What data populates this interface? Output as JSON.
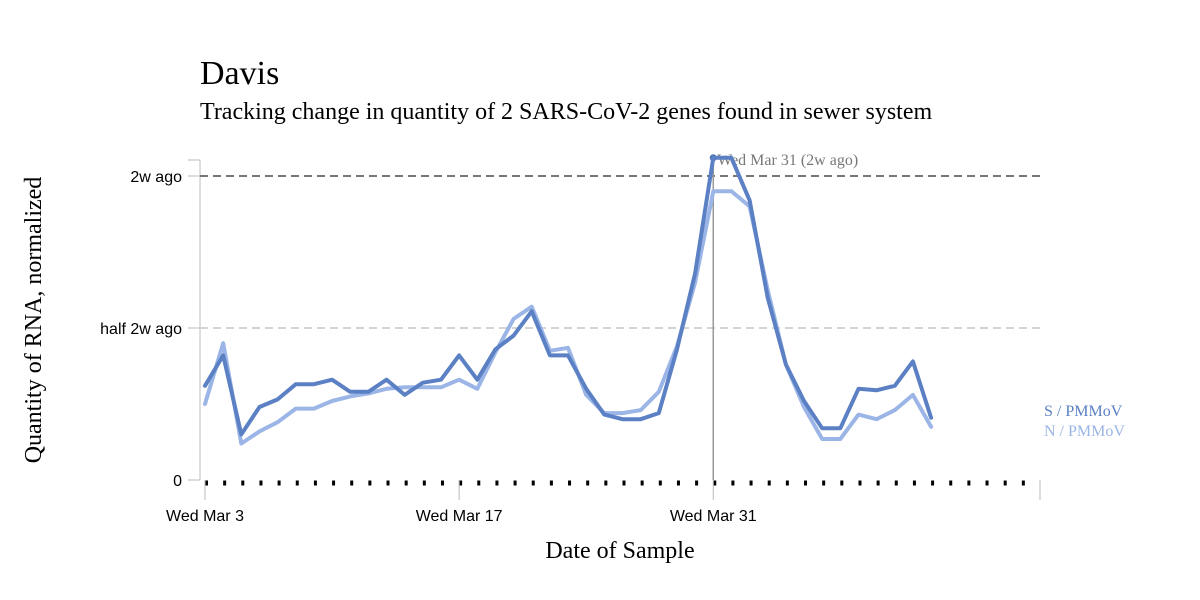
{
  "chart_data": {
    "type": "line",
    "title": "Davis",
    "subtitle": "Tracking change in quantity of 2 SARS-CoV-2 genes found in sewer system",
    "xlabel": "Date of Sample",
    "ylabel": "Quantity of RNA, normalized",
    "x_start": "2021-03-03",
    "x_end": "2021-04-18",
    "x_ticks": [
      {
        "date": "2021-03-03",
        "label": "Wed Mar 3"
      },
      {
        "date": "2021-03-17",
        "label": "Wed Mar 17"
      },
      {
        "date": "2021-03-31",
        "label": "Wed Mar 31"
      }
    ],
    "ylim": [
      0,
      1.05
    ],
    "y_ticks": [
      {
        "value": 0,
        "label": "0"
      },
      {
        "value": 0.5,
        "label": "half 2w ago"
      },
      {
        "value": 1,
        "label": "2w ago"
      }
    ],
    "reference_lines": [
      {
        "value": 1,
        "style": "dashed-dark"
      },
      {
        "value": 0.5,
        "style": "dashed-light"
      }
    ],
    "annotation": {
      "date": "2021-03-31",
      "text": "Wed Mar 31 (2w ago)"
    },
    "series": [
      {
        "name": "N / PMMoV",
        "color": "#9ab5e6",
        "points": [
          [
            "2021-03-03",
            0.25
          ],
          [
            "2021-03-04",
            0.45
          ],
          [
            "2021-03-05",
            0.12
          ],
          [
            "2021-03-06",
            0.16
          ],
          [
            "2021-03-07",
            0.19
          ],
          [
            "2021-03-08",
            0.235
          ],
          [
            "2021-03-09",
            0.235
          ],
          [
            "2021-03-10",
            0.26
          ],
          [
            "2021-03-11",
            0.275
          ],
          [
            "2021-03-12",
            0.285
          ],
          [
            "2021-03-13",
            0.3
          ],
          [
            "2021-03-14",
            0.305
          ],
          [
            "2021-03-15",
            0.305
          ],
          [
            "2021-03-16",
            0.305
          ],
          [
            "2021-03-17",
            0.33
          ],
          [
            "2021-03-18",
            0.3
          ],
          [
            "2021-03-19",
            0.42
          ],
          [
            "2021-03-20",
            0.53
          ],
          [
            "2021-03-21",
            0.57
          ],
          [
            "2021-03-22",
            0.425
          ],
          [
            "2021-03-23",
            0.435
          ],
          [
            "2021-03-24",
            0.28
          ],
          [
            "2021-03-25",
            0.22
          ],
          [
            "2021-03-26",
            0.22
          ],
          [
            "2021-03-27",
            0.23
          ],
          [
            "2021-03-28",
            0.29
          ],
          [
            "2021-03-29",
            0.44
          ],
          [
            "2021-03-30",
            0.65
          ],
          [
            "2021-03-31",
            0.95
          ],
          [
            "2021-04-01",
            0.95
          ],
          [
            "2021-04-02",
            0.9
          ],
          [
            "2021-04-03",
            0.625
          ],
          [
            "2021-04-04",
            0.38
          ],
          [
            "2021-04-05",
            0.24
          ],
          [
            "2021-04-06",
            0.135
          ],
          [
            "2021-04-07",
            0.135
          ],
          [
            "2021-04-08",
            0.215
          ],
          [
            "2021-04-09",
            0.2
          ],
          [
            "2021-04-10",
            0.23
          ],
          [
            "2021-04-11",
            0.28
          ],
          [
            "2021-04-12",
            0.175
          ]
        ]
      },
      {
        "name": "S / PMMoV",
        "color": "#5b80c4",
        "points": [
          [
            "2021-03-03",
            0.31
          ],
          [
            "2021-03-04",
            0.41
          ],
          [
            "2021-03-05",
            0.15
          ],
          [
            "2021-03-06",
            0.24
          ],
          [
            "2021-03-07",
            0.265
          ],
          [
            "2021-03-08",
            0.315
          ],
          [
            "2021-03-09",
            0.315
          ],
          [
            "2021-03-10",
            0.33
          ],
          [
            "2021-03-11",
            0.29
          ],
          [
            "2021-03-12",
            0.29
          ],
          [
            "2021-03-13",
            0.33
          ],
          [
            "2021-03-14",
            0.28
          ],
          [
            "2021-03-15",
            0.32
          ],
          [
            "2021-03-16",
            0.33
          ],
          [
            "2021-03-17",
            0.41
          ],
          [
            "2021-03-18",
            0.33
          ],
          [
            "2021-03-19",
            0.43
          ],
          [
            "2021-03-20",
            0.475
          ],
          [
            "2021-03-21",
            0.555
          ],
          [
            "2021-03-22",
            0.41
          ],
          [
            "2021-03-23",
            0.41
          ],
          [
            "2021-03-24",
            0.3
          ],
          [
            "2021-03-25",
            0.215
          ],
          [
            "2021-03-26",
            0.2
          ],
          [
            "2021-03-27",
            0.2
          ],
          [
            "2021-03-28",
            0.22
          ],
          [
            "2021-03-29",
            0.43
          ],
          [
            "2021-03-30",
            0.68
          ],
          [
            "2021-03-31",
            1.06
          ],
          [
            "2021-04-01",
            1.06
          ],
          [
            "2021-04-02",
            0.92
          ],
          [
            "2021-04-03",
            0.6
          ],
          [
            "2021-04-04",
            0.38
          ],
          [
            "2021-04-05",
            0.26
          ],
          [
            "2021-04-06",
            0.17
          ],
          [
            "2021-04-07",
            0.17
          ],
          [
            "2021-04-08",
            0.3
          ],
          [
            "2021-04-09",
            0.295
          ],
          [
            "2021-04-10",
            0.31
          ],
          [
            "2021-04-11",
            0.39
          ],
          [
            "2021-04-12",
            0.205
          ]
        ]
      }
    ]
  }
}
